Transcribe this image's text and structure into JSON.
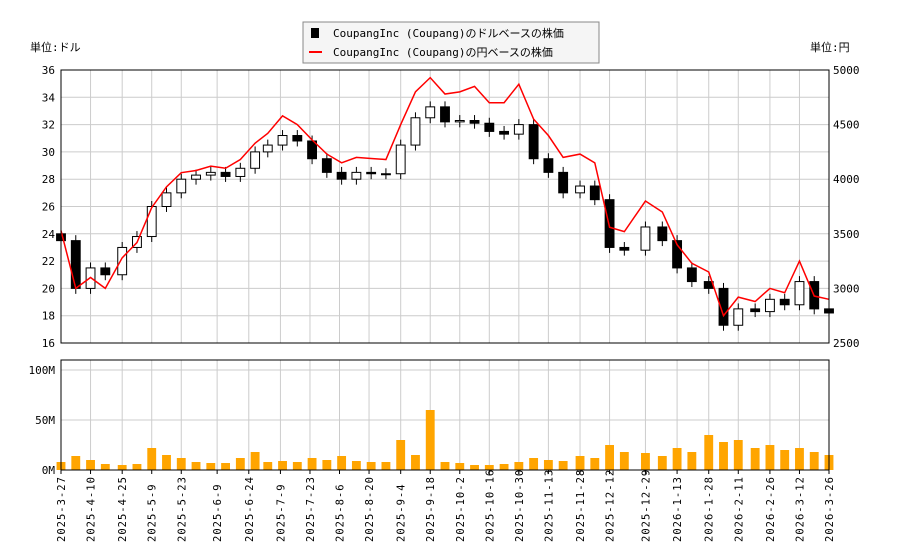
{
  "chart_data": {
    "type": "candlestick+line+bar",
    "legend": {
      "placement": "top-center",
      "entries": [
        {
          "label": "CoupangInc (Coupang)のドルベースの株価",
          "color": "#000000",
          "marker": "square"
        },
        {
          "label": "CoupangInc (Coupang)の円ベースの株価",
          "color": "#ff0000",
          "marker": "line"
        }
      ]
    },
    "left_unit": "単位:ドル",
    "right_unit": "単位:円",
    "y_left": {
      "range": [
        16,
        36
      ],
      "ticks": [
        "16",
        "18",
        "20",
        "22",
        "24",
        "26",
        "28",
        "30",
        "32",
        "34",
        "36"
      ]
    },
    "y_right": {
      "range": [
        2500,
        5000
      ],
      "ticks": [
        "2500",
        "3000",
        "3500",
        "4000",
        "4500",
        "5000"
      ]
    },
    "y_volume": {
      "range": [
        0,
        110
      ],
      "ticks": [
        "0M",
        "50M",
        "100M"
      ]
    },
    "grid": true,
    "colors": {
      "candle": "#000000",
      "yen_line": "#ff0000",
      "volume": "#ffa500",
      "grid": "#cccccc"
    },
    "x_ticks": [
      "2025-3-27",
      "2025-4-10",
      "2025-4-25",
      "2025-5-9",
      "2025-5-23",
      "2025-6-9",
      "2025-6-24",
      "2025-7-9",
      "2025-7-23",
      "2025-8-6",
      "2025-8-20",
      "2025-9-4",
      "2025-9-18",
      "2025-10-2",
      "2025-10-16",
      "2025-10-30",
      "2025-11-13",
      "2025-11-28",
      "2025-12-12",
      "2025-12-29",
      "2026-1-13",
      "2026-1-28",
      "2026-2-11",
      "2026-2-26",
      "2026-3-12",
      "2026-3-26"
    ],
    "dates": [
      "2025-3-27",
      "2025-4-3",
      "2025-4-10",
      "2025-4-17",
      "2025-4-25",
      "2025-5-2",
      "2025-5-9",
      "2025-5-16",
      "2025-5-23",
      "2025-5-30",
      "2025-6-6",
      "2025-6-13",
      "2025-6-20",
      "2025-6-27",
      "2025-7-3",
      "2025-7-10",
      "2025-7-17",
      "2025-7-24",
      "2025-7-31",
      "2025-8-7",
      "2025-8-14",
      "2025-8-21",
      "2025-8-28",
      "2025-9-4",
      "2025-9-11",
      "2025-9-18",
      "2025-9-25",
      "2025-10-2",
      "2025-10-9",
      "2025-10-16",
      "2025-10-23",
      "2025-10-30",
      "2025-11-6",
      "2025-11-13",
      "2025-11-20",
      "2025-11-28",
      "2025-12-5",
      "2025-12-12",
      "2025-12-19",
      "2025-12-29",
      "2026-1-6",
      "2026-1-13",
      "2026-1-20",
      "2026-1-28",
      "2026-2-4",
      "2026-2-11",
      "2026-2-19",
      "2026-2-26",
      "2026-3-5",
      "2026-3-12",
      "2026-3-19",
      "2026-3-26"
    ],
    "close_usd": [
      23.5,
      20,
      21.5,
      21,
      23,
      23.8,
      26,
      27,
      28,
      28.3,
      28.5,
      28.2,
      28.8,
      30,
      30.5,
      31.2,
      30.8,
      29.5,
      28.5,
      28,
      28.5,
      28.4,
      28.4,
      30.5,
      32.5,
      33.3,
      32.2,
      32.3,
      32.1,
      31.5,
      31.3,
      32,
      29.5,
      28.5,
      27,
      27.5,
      26.5,
      23,
      22.8,
      24.5,
      23.5,
      21.5,
      20.5,
      20,
      17.3,
      18.5,
      18.3,
      19.2,
      18.8,
      20.5,
      18.5,
      18.2
    ],
    "close_jpy": [
      3530,
      3000,
      3100,
      3000,
      3280,
      3420,
      3740,
      3930,
      4060,
      4080,
      4120,
      4100,
      4180,
      4330,
      4420,
      4580,
      4500,
      4360,
      4230,
      4150,
      4200,
      4190,
      4180,
      4500,
      4800,
      4930,
      4780,
      4800,
      4850,
      4700,
      4700,
      4870,
      4550,
      4400,
      4200,
      4230,
      4150,
      3560,
      3520,
      3800,
      3700,
      3400,
      3230,
      3150,
      2750,
      2920,
      2880,
      3000,
      2960,
      3250,
      2930,
      2900
    ],
    "volume_m": [
      8,
      14,
      10,
      6,
      5,
      6,
      22,
      15,
      12,
      8,
      7,
      7,
      12,
      18,
      8,
      9,
      8,
      12,
      10,
      14,
      9,
      8,
      8,
      30,
      15,
      60,
      8,
      7,
      5,
      5,
      6,
      8,
      12,
      10,
      9,
      14,
      12,
      25,
      18,
      17,
      14,
      22,
      18,
      35,
      28,
      30,
      22,
      25,
      20,
      22,
      18,
      15
    ]
  }
}
